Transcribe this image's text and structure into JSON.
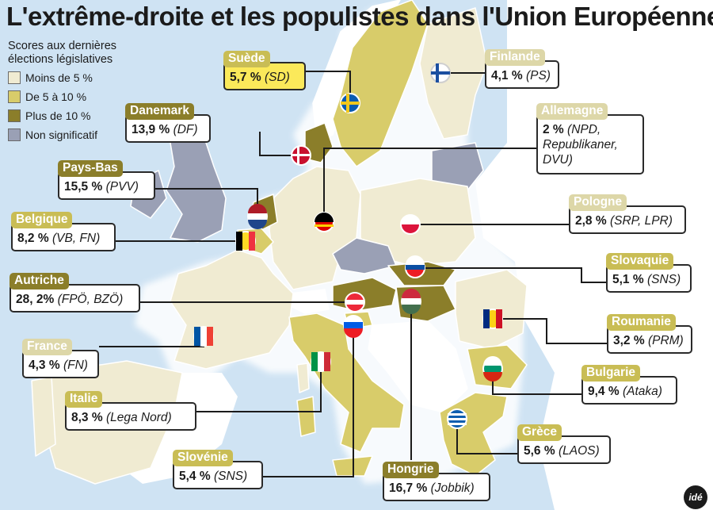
{
  "title": "L'extrême-droite et les populistes dans l'Union Européenne",
  "legend": {
    "heading_line1": "Scores aux dernières",
    "heading_line2": "élections législatives",
    "items": [
      {
        "label": "Moins de  5 %",
        "color": "#f0ebd2"
      },
      {
        "label": "De 5 à 10 %",
        "color": "#d8cc6a"
      },
      {
        "label": "Plus de  10 %",
        "color": "#8b7e2a"
      },
      {
        "label": "Non significatif",
        "color": "#9aa0b5"
      }
    ]
  },
  "colors": {
    "sea": "#cfe3f3",
    "coast_glow": "#ffffff",
    "border": "#ffffff",
    "low": "#f0ebd2",
    "mid": "#d8cc6a",
    "high": "#8b7e2a",
    "none": "#9aa0b5",
    "outside": "#ffffff"
  },
  "countries": [
    {
      "id": "suede",
      "name": "Suède",
      "value": "5,7 %",
      "party": "(SD)",
      "category": "mid",
      "highlight": true
    },
    {
      "id": "finlande",
      "name": "Finlande",
      "value": "4,1 %",
      "party": "(PS)",
      "category": "low"
    },
    {
      "id": "danemark",
      "name": "Danemark",
      "value": "13,9 %",
      "party": "(DF)",
      "category": "high"
    },
    {
      "id": "allemagne",
      "name": "Allemagne",
      "value": "2 %",
      "party": "(NPD,",
      "party_line2": "Republikaner,",
      "party_line3": "DVU)",
      "category": "low"
    },
    {
      "id": "paysbas",
      "name": "Pays-Bas",
      "value": "15,5 %",
      "party": "(PVV)",
      "category": "high"
    },
    {
      "id": "pologne",
      "name": "Pologne",
      "value": "2,8 %",
      "party": "(SRP, LPR)",
      "category": "low"
    },
    {
      "id": "belgique",
      "name": "Belgique",
      "value": "8,2 %",
      "party": "(VB, FN)",
      "category": "mid"
    },
    {
      "id": "slovaquie",
      "name": "Slovaquie",
      "value": "5,1 %",
      "party": "(SNS)",
      "category": "mid"
    },
    {
      "id": "autriche",
      "name": "Autriche",
      "value": "28, 2%",
      "party": "(FPÖ, BZÖ)",
      "category": "high"
    },
    {
      "id": "roumanie",
      "name": "Roumanie",
      "value": "3,2 %",
      "party": "(PRM)",
      "category": "low"
    },
    {
      "id": "france",
      "name": "France",
      "value": "4,3 %",
      "party": "(FN)",
      "category": "low"
    },
    {
      "id": "bulgarie",
      "name": "Bulgarie",
      "value": "9,4 %",
      "party": "(Ataka)",
      "category": "mid"
    },
    {
      "id": "italie",
      "name": "Italie",
      "value": "8,3 %",
      "party": "(Lega Nord)",
      "category": "mid"
    },
    {
      "id": "grece",
      "name": "Grèce",
      "value": "5,6 %",
      "party": "(LAOS)",
      "category": "mid"
    },
    {
      "id": "slovenie",
      "name": "Slovénie",
      "value": "5,4 %",
      "party": "(SNS)",
      "category": "mid"
    },
    {
      "id": "hongrie",
      "name": "Hongrie",
      "value": "16,7 %",
      "party": "(Jobbik)",
      "category": "high"
    }
  ],
  "logo_text": "idé"
}
